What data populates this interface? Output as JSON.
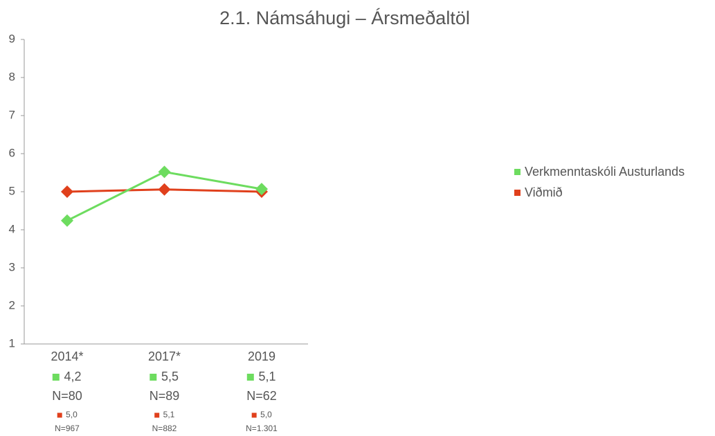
{
  "chart_data": {
    "type": "line",
    "title": "2.1. Námsáhugi – Ársmeðaltöl",
    "categories": [
      "2014*",
      "2017*",
      "2019"
    ],
    "series": [
      {
        "name": "Verkmenntaskóli Austurlands",
        "color": "#6ddc5f",
        "values": [
          4.24,
          5.52,
          5.07
        ],
        "value_labels": [
          "4,2",
          "5,5",
          "5,1"
        ],
        "counts": [
          "N=80",
          "N=89",
          "N=62"
        ]
      },
      {
        "name": "Viðmið",
        "color": "#e0401c",
        "values": [
          5.0,
          5.06,
          5.0
        ],
        "value_labels": [
          "5,0",
          "5,1",
          "5,0"
        ],
        "counts": [
          "N=967",
          "N=882",
          "N=1.301"
        ]
      }
    ],
    "ylim": [
      1,
      9
    ],
    "yticks": [
      1,
      2,
      3,
      4,
      5,
      6,
      7,
      8,
      9
    ],
    "grid": false,
    "legend": "right"
  }
}
